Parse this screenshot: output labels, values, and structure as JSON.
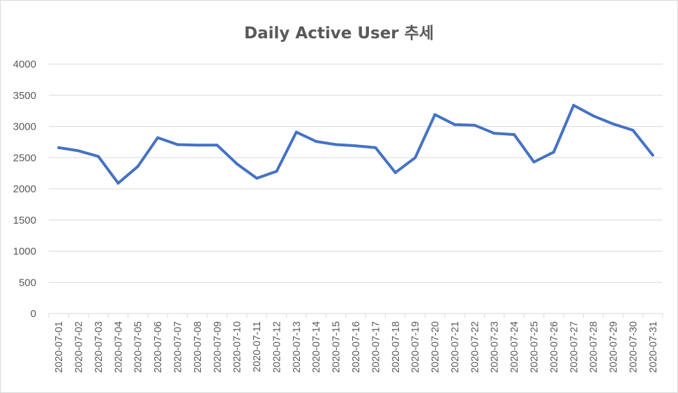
{
  "chart_data": {
    "type": "line",
    "title": "Daily Active User  추세",
    "xlabel": "",
    "ylabel": "",
    "ylim": [
      0,
      4000
    ],
    "yticks": [
      0,
      500,
      1000,
      1500,
      2000,
      2500,
      3000,
      3500,
      4000
    ],
    "grid": true,
    "legend": "none",
    "x": [
      "2020-07-01",
      "2020-07-02",
      "2020-07-03",
      "2020-07-04",
      "2020-07-05",
      "2020-07-06",
      "2020-07-07",
      "2020-07-08",
      "2020-07-09",
      "2020-07-10",
      "2020-07-11",
      "2020-07-12",
      "2020-07-13",
      "2020-07-14",
      "2020-07-15",
      "2020-07-16",
      "2020-07-17",
      "2020-07-18",
      "2020-07-19",
      "2020-07-20",
      "2020-07-21",
      "2020-07-22",
      "2020-07-23",
      "2020-07-24",
      "2020-07-25",
      "2020-07-26",
      "2020-07-27",
      "2020-07-28",
      "2020-07-29",
      "2020-07-30",
      "2020-07-31"
    ],
    "series": [
      {
        "color": "#4472c4",
        "values": [
          2660,
          2610,
          2520,
          2090,
          2360,
          2820,
          2710,
          2700,
          2700,
          2400,
          2170,
          2280,
          2910,
          2760,
          2710,
          2690,
          2660,
          2260,
          2500,
          3190,
          3030,
          3020,
          2890,
          2870,
          2430,
          2590,
          3340,
          3170,
          3040,
          2940,
          2540
        ]
      }
    ]
  },
  "colors": {
    "line": "#4472c4",
    "grid": "#d9d9d9",
    "text": "#595959"
  }
}
